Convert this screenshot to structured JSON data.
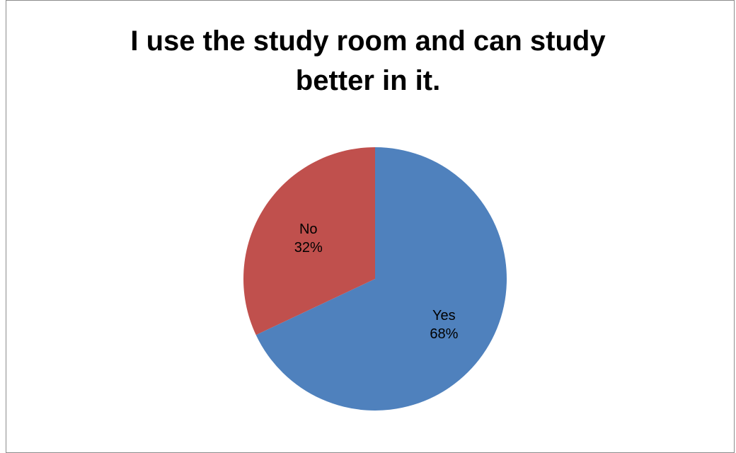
{
  "chart_data": {
    "type": "pie",
    "title_lines": [
      "I use the study room and can study",
      "better in it."
    ],
    "slices": [
      {
        "label": "Yes",
        "percent_label": "68%",
        "value": 68,
        "color": "#4F81BD"
      },
      {
        "label": "No",
        "percent_label": "32%",
        "value": 32,
        "color": "#C0504D"
      }
    ],
    "legend": "none"
  }
}
